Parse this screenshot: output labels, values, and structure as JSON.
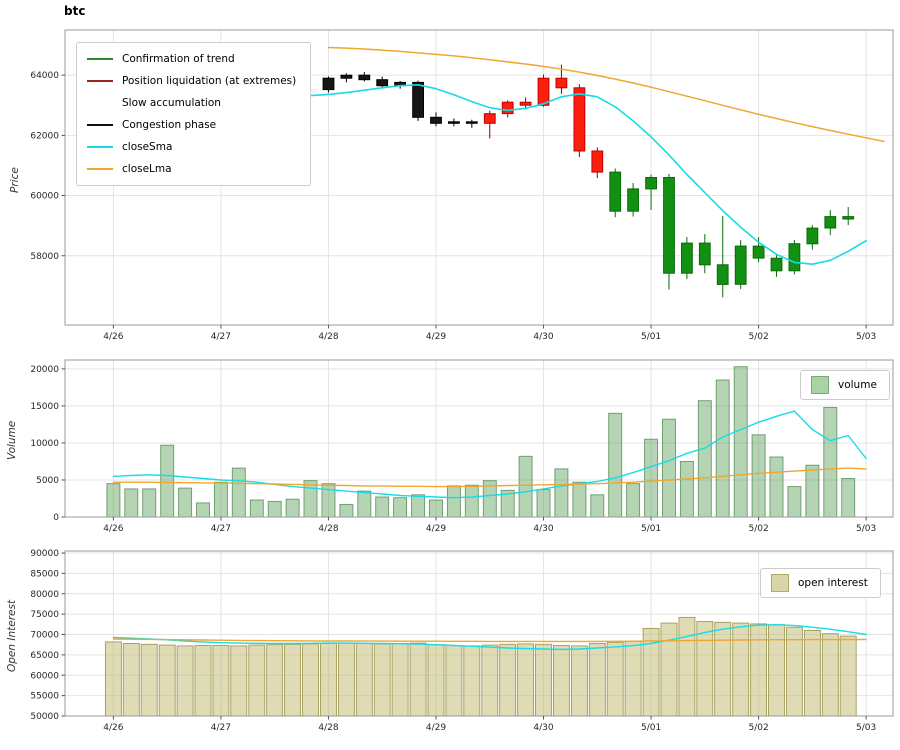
{
  "chart_data": [
    {
      "type": "candlestick",
      "name": "price-panel",
      "title": "btc",
      "ylabel": "Price",
      "ylim": [
        55700,
        65500
      ],
      "yticks": [
        58000,
        60000,
        62000,
        64000
      ],
      "xlim": [
        -2.7,
        43.5
      ],
      "x_tick_positions": [
        0,
        6,
        12,
        18,
        24,
        30,
        36,
        42
      ],
      "x_tick_labels": [
        "4/26",
        "4/27",
        "4/28",
        "4/29",
        "4/30",
        "5/01",
        "5/02",
        "5/03"
      ],
      "grid": true,
      "legend_position": "upper-left",
      "phases": {
        "g": {
          "label": "Confirmation of trend",
          "body": "#129012",
          "edge": "#0a6a0a",
          "wick": "#0a6a0a",
          "legend": "#2e8b2e"
        },
        "r": {
          "label": "Position liquidation (at extremes)",
          "body": "#fb1f10",
          "edge": "#c40000",
          "wick": "#8b0000",
          "legend": "#992626"
        },
        "w": {
          "label": "Slow accumulation",
          "body": "#ffffff",
          "edge": "#e6e6e6",
          "wick": "#dddddd",
          "legend": "#ffffff"
        },
        "k": {
          "label": "Congestion phase",
          "body": "#161616",
          "edge": "#000000",
          "wick": "#000000",
          "legend": "#111111"
        }
      },
      "candles": [
        [
          0,
          63400,
          63600,
          63250,
          63500,
          "w"
        ],
        [
          1,
          63500,
          63700,
          63400,
          63620,
          "w"
        ],
        [
          2,
          63620,
          63780,
          63450,
          63550,
          "w"
        ],
        [
          3,
          63550,
          63650,
          63300,
          63420,
          "w"
        ],
        [
          4,
          63420,
          63560,
          63260,
          63500,
          "w"
        ],
        [
          5,
          63500,
          63700,
          63400,
          63650,
          "w"
        ],
        [
          6,
          63650,
          63760,
          63450,
          63550,
          "w"
        ],
        [
          7,
          63550,
          63620,
          63300,
          63400,
          "w"
        ],
        [
          8,
          63400,
          63500,
          63180,
          63300,
          "w"
        ],
        [
          9,
          63300,
          63460,
          63150,
          63360,
          "w"
        ],
        [
          10,
          63360,
          63560,
          63250,
          63460,
          "w"
        ],
        [
          11,
          63460,
          63620,
          63350,
          63520,
          "w"
        ],
        [
          12,
          63520,
          63960,
          63420,
          63900,
          "k"
        ],
        [
          13,
          63900,
          64060,
          63760,
          64000,
          "k"
        ],
        [
          14,
          64000,
          64100,
          63790,
          63850,
          "k"
        ],
        [
          15,
          63850,
          63950,
          63590,
          63650,
          "k"
        ],
        [
          16,
          63650,
          63810,
          63550,
          63760,
          "k"
        ],
        [
          17,
          63760,
          63820,
          62480,
          62600,
          "k"
        ],
        [
          18,
          62600,
          62760,
          62300,
          62400,
          "k"
        ],
        [
          19,
          62400,
          62560,
          62300,
          62450,
          "k"
        ],
        [
          20,
          62450,
          62520,
          62250,
          62400,
          "k"
        ],
        [
          21,
          62400,
          62820,
          61900,
          62720,
          "r"
        ],
        [
          22,
          62720,
          63160,
          62600,
          63100,
          "r"
        ],
        [
          23,
          63100,
          63260,
          62860,
          63000,
          "r"
        ],
        [
          24,
          63000,
          64020,
          62950,
          63900,
          "r"
        ],
        [
          25,
          63900,
          64350,
          63380,
          63580,
          "r"
        ],
        [
          26,
          63580,
          63700,
          61280,
          61480,
          "r"
        ],
        [
          27,
          61480,
          61600,
          60580,
          60780,
          "r"
        ],
        [
          28,
          60780,
          60900,
          59280,
          59480,
          "g"
        ],
        [
          29,
          59480,
          60420,
          59300,
          60220,
          "g"
        ],
        [
          30,
          60220,
          60700,
          59520,
          60600,
          "g"
        ],
        [
          31,
          60600,
          60720,
          56880,
          57420,
          "g"
        ],
        [
          32,
          57420,
          58620,
          57220,
          58420,
          "g"
        ],
        [
          33,
          58420,
          58720,
          57420,
          57700,
          "g"
        ],
        [
          34,
          57700,
          59320,
          56620,
          57050,
          "g"
        ],
        [
          35,
          57050,
          58520,
          56900,
          58320,
          "g"
        ],
        [
          36,
          58320,
          58620,
          57780,
          57920,
          "g"
        ],
        [
          37,
          57920,
          58020,
          57300,
          57500,
          "g"
        ],
        [
          38,
          57500,
          58520,
          57380,
          58400,
          "g"
        ],
        [
          39,
          58400,
          59020,
          58200,
          58920,
          "g"
        ],
        [
          40,
          58920,
          59520,
          58680,
          59300,
          "g"
        ],
        [
          41,
          59300,
          59620,
          59020,
          59220,
          "g"
        ]
      ],
      "series": [
        {
          "name": "closeSma",
          "color": "#17dce6",
          "width": 1.6,
          "x0": 10,
          "values": [
            63300,
            63320,
            63360,
            63420,
            63500,
            63580,
            63650,
            63680,
            63550,
            63350,
            63120,
            62920,
            62830,
            62900,
            63050,
            63280,
            63380,
            63280,
            62950,
            62480,
            61950,
            61350,
            60700,
            60100,
            59500,
            58950,
            58450,
            58050,
            57780,
            57720,
            57850,
            58150,
            58500
          ]
        },
        {
          "name": "closeLma",
          "color": "#efa72f",
          "width": 1.5,
          "x0": 12,
          "values": [
            64920,
            64900,
            64870,
            64830,
            64790,
            64740,
            64690,
            64640,
            64580,
            64510,
            64440,
            64370,
            64290,
            64200,
            64100,
            63990,
            63870,
            63740,
            63600,
            63450,
            63300,
            63150,
            63000,
            62850,
            62700,
            62560,
            62420,
            62290,
            62160,
            62040,
            61920,
            61800
          ]
        }
      ]
    },
    {
      "type": "bar",
      "name": "volume-panel",
      "ylabel": "Volume",
      "ylim": [
        0,
        21200
      ],
      "yticks": [
        0,
        5000,
        10000,
        15000,
        20000
      ],
      "xlim": [
        -2.7,
        43.5
      ],
      "x_tick_positions": [
        0,
        6,
        12,
        18,
        24,
        30,
        36,
        42
      ],
      "x_tick_labels": [
        "4/26",
        "4/27",
        "4/28",
        "4/29",
        "4/30",
        "5/01",
        "5/02",
        "5/03"
      ],
      "grid": true,
      "legend": {
        "label": "volume",
        "fill": "#a9d3a4"
      },
      "legend_position": "upper-right",
      "bar_fill": "rgba(76,153,76,0.42)",
      "bar_edge": "rgba(90,145,90,0.9)",
      "values": [
        4500,
        3800,
        3800,
        9700,
        3900,
        1900,
        4700,
        6600,
        2300,
        2100,
        2400,
        4900,
        4500,
        1700,
        3500,
        2700,
        2600,
        3000,
        2300,
        4200,
        4300,
        4900,
        3600,
        8200,
        3700,
        6500,
        4700,
        3000,
        14000,
        4500,
        10500,
        13200,
        7500,
        15700,
        18500,
        20300,
        11100,
        8100,
        4100,
        7000,
        14800,
        5200
      ],
      "series": [
        {
          "name": "sma-line",
          "color": "#17dce6",
          "width": 1.4,
          "x0": 0,
          "values": [
            5500,
            5600,
            5700,
            5600,
            5400,
            5200,
            5000,
            4900,
            4700,
            4400,
            4100,
            3900,
            3700,
            3500,
            3300,
            3100,
            2900,
            2800,
            2700,
            2600,
            2700,
            2900,
            3100,
            3400,
            3800,
            4200,
            4500,
            4800,
            5300,
            6000,
            6800,
            7600,
            8600,
            9300,
            10800,
            11800,
            12800,
            13600,
            14300,
            11800,
            10300,
            11000,
            7900
          ]
        },
        {
          "name": "lma-line",
          "color": "#efa72f",
          "width": 1.4,
          "x0": 0,
          "values": [
            4700,
            4700,
            4700,
            4650,
            4650,
            4600,
            4600,
            4550,
            4500,
            4450,
            4400,
            4350,
            4300,
            4250,
            4200,
            4200,
            4150,
            4150,
            4100,
            4100,
            4150,
            4200,
            4250,
            4300,
            4350,
            4400,
            4450,
            4500,
            4600,
            4700,
            4850,
            5000,
            5150,
            5300,
            5500,
            5700,
            5900,
            6050,
            6200,
            6350,
            6500,
            6600,
            6500
          ]
        }
      ]
    },
    {
      "type": "bar",
      "name": "open-interest-panel",
      "ylabel": "Open Interest",
      "ylim": [
        50000,
        90500
      ],
      "yticks": [
        50000,
        55000,
        60000,
        65000,
        70000,
        75000,
        80000,
        85000,
        90000
      ],
      "xlim": [
        -2.7,
        43.5
      ],
      "x_tick_positions": [
        0,
        6,
        12,
        18,
        24,
        30,
        36,
        42
      ],
      "x_tick_labels": [
        "4/26",
        "4/27",
        "4/28",
        "4/29",
        "4/30",
        "5/01",
        "5/02",
        "5/03"
      ],
      "grid": true,
      "legend": {
        "label": "open interest",
        "fill": "#dad5a8"
      },
      "legend_position": "upper-right",
      "bar_fill": "rgba(189,183,107,0.5)",
      "bar_edge": "rgba(158,151,82,0.95)",
      "values": [
        68200,
        67800,
        67600,
        67400,
        67200,
        67300,
        67300,
        67200,
        67400,
        67500,
        67600,
        67700,
        67800,
        67900,
        67800,
        67700,
        67800,
        67900,
        67500,
        67300,
        67200,
        67400,
        67600,
        67700,
        67600,
        67300,
        67200,
        67800,
        68100,
        68300,
        71500,
        72800,
        74200,
        73200,
        73000,
        72800,
        72600,
        72400,
        71800,
        71000,
        70200,
        69600
      ],
      "series": [
        {
          "name": "sma-line",
          "color": "#17dce6",
          "width": 1.4,
          "x0": 0,
          "values": [
            69300,
            69100,
            68900,
            68700,
            68400,
            68200,
            68000,
            67900,
            67850,
            67800,
            67800,
            67850,
            67900,
            67900,
            67850,
            67800,
            67750,
            67650,
            67500,
            67300,
            67100,
            66900,
            66700,
            66550,
            66450,
            66350,
            66450,
            66700,
            66950,
            67250,
            67800,
            68600,
            69500,
            70500,
            71300,
            71900,
            72300,
            72400,
            72200,
            71800,
            71300,
            70700,
            70000
          ]
        },
        {
          "name": "lma-line",
          "color": "#efa72f",
          "width": 1.4,
          "x0": 0,
          "values": [
            68900,
            68850,
            68800,
            68750,
            68700,
            68650,
            68600,
            68550,
            68500,
            68480,
            68460,
            68440,
            68420,
            68400,
            68390,
            68380,
            68370,
            68360,
            68350,
            68340,
            68330,
            68320,
            68310,
            68300,
            68300,
            68300,
            68310,
            68320,
            68340,
            68360,
            68400,
            68450,
            68500,
            68550,
            68600,
            68650,
            68700,
            68720,
            68740,
            68750,
            68760,
            68770,
            68780
          ]
        }
      ]
    }
  ]
}
